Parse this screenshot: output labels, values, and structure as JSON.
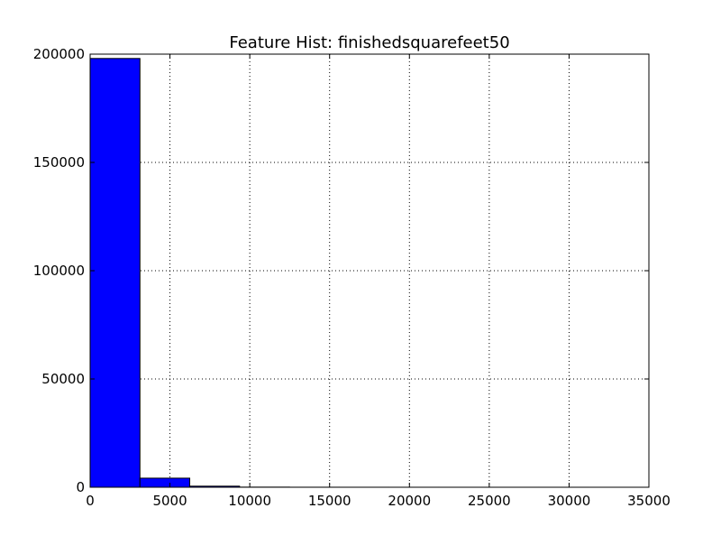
{
  "chart_data": {
    "type": "bar",
    "title": "Feature Hist: finishedsquarefeet50",
    "xlabel": "",
    "ylabel": "",
    "xlim": [
      0,
      35000
    ],
    "ylim": [
      0,
      200000
    ],
    "xticks": [
      0,
      5000,
      10000,
      15000,
      20000,
      25000,
      30000,
      35000
    ],
    "xtick_labels": [
      "0",
      "5000",
      "10000",
      "15000",
      "20000",
      "25000",
      "30000",
      "35000"
    ],
    "yticks": [
      0,
      50000,
      100000,
      150000,
      200000
    ],
    "ytick_labels": [
      "0",
      "50000",
      "100000",
      "150000",
      "200000"
    ],
    "bins": [
      {
        "x0": 0,
        "x1": 3120,
        "value": 198000
      },
      {
        "x0": 3120,
        "x1": 6240,
        "value": 4200
      },
      {
        "x0": 6240,
        "x1": 9360,
        "value": 500
      },
      {
        "x0": 9360,
        "x1": 12480,
        "value": 60
      },
      {
        "x0": 12480,
        "x1": 15600,
        "value": 20
      },
      {
        "x0": 15600,
        "x1": 18720,
        "value": 10
      },
      {
        "x0": 18720,
        "x1": 21840,
        "value": 5
      },
      {
        "x0": 21840,
        "x1": 24960,
        "value": 3
      },
      {
        "x0": 24960,
        "x1": 28080,
        "value": 2
      },
      {
        "x0": 28080,
        "x1": 31200,
        "value": 2
      }
    ],
    "grid": true,
    "bar_color": "#0000ff",
    "edge_color": "#000000"
  }
}
